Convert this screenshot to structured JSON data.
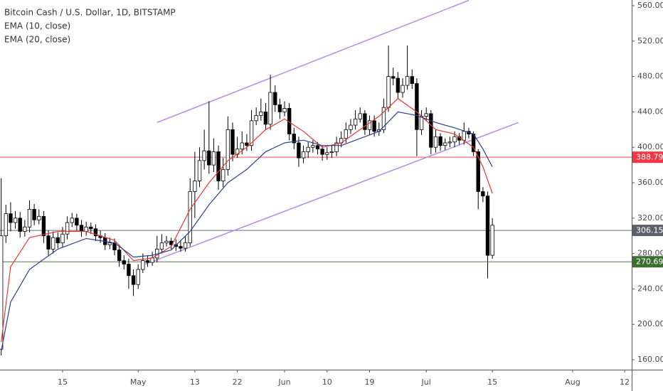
{
  "chart_data": {
    "type": "candlestick",
    "title": "Bitcoin Cash / U.S. Dollar, 1D, BITSTAMP",
    "x": [
      92,
      93,
      94,
      95,
      96,
      97,
      98,
      99,
      100,
      101,
      102,
      103,
      104,
      105,
      106,
      107,
      108,
      109,
      110,
      111,
      112,
      113,
      114,
      115,
      116,
      117,
      118,
      119,
      120,
      121,
      122,
      123,
      124,
      125,
      126,
      127,
      128,
      129,
      130,
      131,
      132,
      133,
      134,
      135,
      136,
      137,
      138,
      139,
      140,
      141,
      142,
      143,
      144,
      145,
      146,
      147,
      148,
      149,
      150,
      151,
      152,
      153,
      154,
      155,
      156,
      157,
      158,
      159,
      160,
      161,
      162,
      163,
      164,
      165,
      166,
      167,
      168,
      169,
      170,
      171,
      172,
      173,
      174,
      175,
      176,
      177,
      178,
      179,
      180,
      181,
      182,
      183,
      184,
      185,
      186,
      187,
      188,
      189,
      190,
      191,
      192,
      193,
      194,
      195,
      196
    ],
    "open": [
      172,
      300,
      325,
      315,
      320,
      305,
      310,
      330,
      318,
      322,
      300,
      285,
      298,
      292,
      302,
      315,
      320,
      312,
      305,
      310,
      308,
      300,
      298,
      290,
      292,
      284,
      272,
      268,
      255,
      245,
      262,
      272,
      270,
      275,
      285,
      292,
      294,
      290,
      288,
      286,
      292,
      350,
      362,
      385,
      396,
      380,
      395,
      362,
      375,
      420,
      392,
      398,
      405,
      402,
      430,
      436,
      440,
      426,
      462,
      448,
      440,
      444,
      415,
      405,
      388,
      395,
      400,
      402,
      398,
      392,
      394,
      395,
      405,
      410,
      420,
      425,
      432,
      438,
      420,
      430,
      418,
      420,
      445,
      480,
      478,
      462,
      470,
      480,
      472,
      420,
      435,
      438,
      400,
      412,
      402,
      405,
      406,
      412,
      408,
      418,
      415,
      395,
      350,
      345,
      278
    ],
    "high": [
      365,
      335,
      338,
      328,
      327,
      318,
      340,
      336,
      330,
      328,
      306,
      305,
      304,
      310,
      322,
      326,
      325,
      318,
      316,
      315,
      313,
      306,
      303,
      298,
      297,
      290,
      278,
      274,
      262,
      268,
      280,
      278,
      282,
      300,
      302,
      300,
      298,
      296,
      294,
      300,
      365,
      395,
      400,
      420,
      452,
      410,
      402,
      388,
      435,
      428,
      412,
      418,
      415,
      442,
      445,
      455,
      450,
      482,
      470,
      455,
      452,
      450,
      422,
      412,
      402,
      406,
      408,
      406,
      402,
      400,
      402,
      412,
      418,
      428,
      432,
      442,
      445,
      442,
      436,
      436,
      428,
      455,
      515,
      490,
      485,
      478,
      515,
      488,
      478,
      442,
      445,
      442,
      420,
      416,
      410,
      412,
      418,
      416,
      428,
      422,
      418,
      398,
      355,
      350,
      320
    ],
    "low": [
      165,
      292,
      305,
      308,
      298,
      299,
      304,
      312,
      313,
      292,
      278,
      280,
      286,
      287,
      296,
      310,
      306,
      299,
      300,
      302,
      294,
      292,
      284,
      285,
      278,
      265,
      262,
      240,
      232,
      240,
      258,
      265,
      266,
      270,
      280,
      288,
      285,
      283,
      282,
      282,
      288,
      320,
      355,
      375,
      370,
      372,
      352,
      355,
      368,
      384,
      388,
      392,
      396,
      396,
      425,
      430,
      420,
      420,
      440,
      432,
      435,
      408,
      398,
      378,
      382,
      388,
      394,
      392,
      385,
      386,
      388,
      390,
      400,
      405,
      415,
      420,
      428,
      414,
      414,
      412,
      413,
      416,
      440,
      470,
      455,
      456,
      465,
      466,
      390,
      414,
      430,
      392,
      394,
      396,
      397,
      400,
      400,
      403,
      403,
      410,
      390,
      330,
      338,
      252,
      274
    ],
    "close": [
      300,
      325,
      315,
      320,
      305,
      310,
      330,
      318,
      322,
      300,
      285,
      298,
      292,
      302,
      315,
      320,
      312,
      305,
      310,
      308,
      300,
      298,
      290,
      292,
      284,
      272,
      268,
      255,
      245,
      262,
      272,
      270,
      275,
      285,
      292,
      294,
      290,
      288,
      286,
      292,
      350,
      362,
      385,
      396,
      380,
      395,
      362,
      375,
      420,
      392,
      398,
      405,
      402,
      430,
      436,
      440,
      426,
      462,
      448,
      440,
      444,
      415,
      405,
      388,
      395,
      400,
      402,
      398,
      392,
      394,
      395,
      405,
      410,
      420,
      425,
      432,
      438,
      420,
      430,
      418,
      420,
      445,
      480,
      478,
      462,
      470,
      480,
      472,
      420,
      435,
      438,
      400,
      412,
      402,
      405,
      406,
      412,
      408,
      418,
      415,
      395,
      350,
      345,
      278,
      312
    ],
    "series": [
      {
        "name": "EMA (10, close)",
        "color": "#e53935",
        "x": [
          92,
          94,
          98,
          104,
          110,
          116,
          120,
          124,
          128,
          132,
          136,
          140,
          144,
          148,
          152,
          156,
          160,
          164,
          168,
          172,
          176,
          180,
          184,
          188,
          192,
          194,
          196
        ],
        "values": [
          180,
          265,
          298,
          305,
          305,
          295,
          272,
          275,
          288,
          330,
          360,
          385,
          400,
          420,
          432,
          418,
          400,
          405,
          420,
          435,
          455,
          440,
          420,
          415,
          400,
          378,
          348
        ]
      },
      {
        "name": "EMA (20, close)",
        "color": "#2e3f8f",
        "x": [
          92,
          94,
          98,
          104,
          110,
          116,
          120,
          124,
          128,
          132,
          136,
          140,
          144,
          148,
          152,
          156,
          160,
          164,
          168,
          172,
          176,
          180,
          184,
          188,
          192,
          194,
          196
        ],
        "values": [
          170,
          225,
          262,
          285,
          297,
          292,
          276,
          278,
          284,
          305,
          335,
          360,
          375,
          395,
          405,
          408,
          402,
          402,
          410,
          418,
          440,
          436,
          428,
          422,
          415,
          398,
          378
        ]
      }
    ],
    "trendlines": [
      {
        "color": "#b58be0",
        "x": [
          125,
          191
        ],
        "values": [
          428,
          566
        ]
      },
      {
        "color": "#b58be0",
        "x": [
          122.5,
          201.5
        ],
        "values": [
          268,
          428
        ]
      }
    ],
    "hlines": [
      {
        "value": 388.79,
        "color": "#f23645"
      },
      {
        "value": 306.15,
        "color": "#5d606b"
      },
      {
        "value": 270.69,
        "color": "#3b6e2f"
      }
    ],
    "up_color": "#ffffff",
    "down_color": "#000000",
    "xlim": [
      91.75,
      225.5
    ],
    "xticks": [
      {
        "value": 105,
        "label": "15"
      },
      {
        "value": 121,
        "label": "May"
      },
      {
        "value": 133,
        "label": "13"
      },
      {
        "value": 142,
        "label": "22"
      },
      {
        "value": 152,
        "label": "Jun"
      },
      {
        "value": 161,
        "label": "10"
      },
      {
        "value": 170,
        "label": "19"
      },
      {
        "value": 182,
        "label": "Jul"
      },
      {
        "value": 196,
        "label": "15"
      },
      {
        "value": 213,
        "label": "Aug"
      },
      {
        "value": 224,
        "label": "12"
      }
    ],
    "ylim": [
      148.8,
      566.4
    ],
    "yticks": [
      {
        "value": 160,
        "label": "160.00"
      },
      {
        "value": 200,
        "label": "200.00"
      },
      {
        "value": 240,
        "label": "240.00"
      },
      {
        "value": 280,
        "label": "280.00"
      },
      {
        "value": 320,
        "label": "320.00"
      },
      {
        "value": 360,
        "label": "360.00"
      },
      {
        "value": 400,
        "label": "400.00"
      },
      {
        "value": 440,
        "label": "440.00"
      },
      {
        "value": 480,
        "label": "480.00"
      },
      {
        "value": 520,
        "label": "520.00"
      },
      {
        "value": 560,
        "label": "560.00"
      }
    ],
    "grid": false
  }
}
